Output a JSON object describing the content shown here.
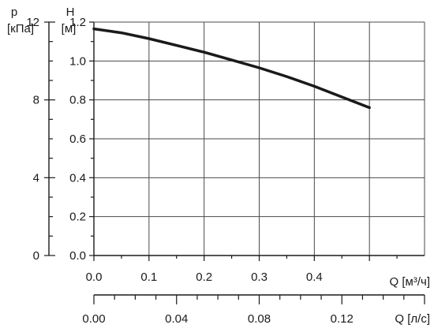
{
  "chart_data": {
    "type": "line",
    "x_axis_primary": {
      "label": "Q [м³/ч]",
      "range": [
        0,
        0.6
      ],
      "ticks": [
        "0.0",
        "0.1",
        "0.2",
        "0.3",
        "0.4"
      ],
      "tick_values": [
        0,
        0.1,
        0.2,
        0.3,
        0.4
      ]
    },
    "x_axis_secondary": {
      "label": "Q [л/с]",
      "range": [
        0,
        0.16
      ],
      "ticks": [
        "0.00",
        "0.04",
        "0.08",
        "0.12"
      ],
      "tick_values": [
        0,
        0.04,
        0.08,
        0.12
      ]
    },
    "y_axis_primary": {
      "symbol": "H",
      "unit": "[м]",
      "range": [
        0,
        1.2
      ],
      "ticks": [
        "0.0",
        "0.2",
        "0.4",
        "0.6",
        "0.8",
        "1.0",
        "1.2"
      ],
      "tick_values": [
        0,
        0.2,
        0.4,
        0.6,
        0.8,
        1.0,
        1.2
      ]
    },
    "y_axis_secondary": {
      "symbol": "p",
      "unit": "[кПа]",
      "range": [
        0,
        12
      ],
      "ticks": [
        "0",
        "4",
        "8",
        "12"
      ],
      "tick_values": [
        0,
        4,
        8,
        12
      ]
    },
    "series": [
      {
        "x": [
          0,
          0.05,
          0.1,
          0.15,
          0.2,
          0.25,
          0.3,
          0.35,
          0.4,
          0.45,
          0.5
        ],
        "y": [
          1.165,
          1.145,
          1.115,
          1.08,
          1.045,
          1.005,
          0.965,
          0.92,
          0.87,
          0.815,
          0.76
        ]
      }
    ],
    "grid": true
  }
}
